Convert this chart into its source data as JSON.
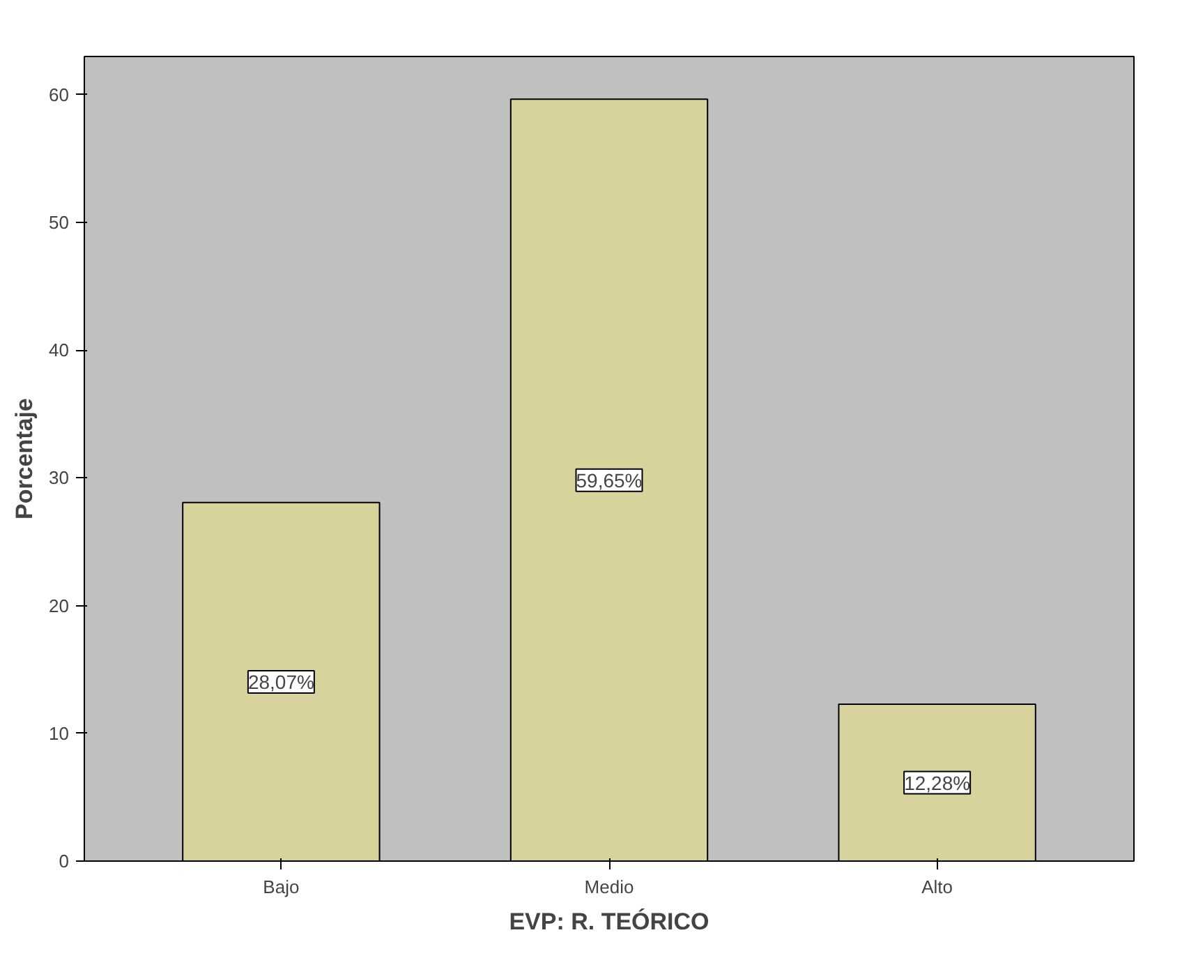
{
  "chart_data": {
    "type": "bar",
    "xlabel": "EVP: R. TEÓRICO",
    "ylabel": "Porcentaje",
    "categories": [
      "Bajo",
      "Medio",
      "Alto"
    ],
    "values": [
      28.07,
      59.65,
      12.28
    ],
    "value_labels": [
      "28,07%",
      "59,65%",
      "12,28%"
    ],
    "color": "#d8d29c",
    "ylim": [
      0,
      63
    ],
    "yticks": [
      0,
      10,
      20,
      30,
      40,
      50,
      60
    ]
  }
}
